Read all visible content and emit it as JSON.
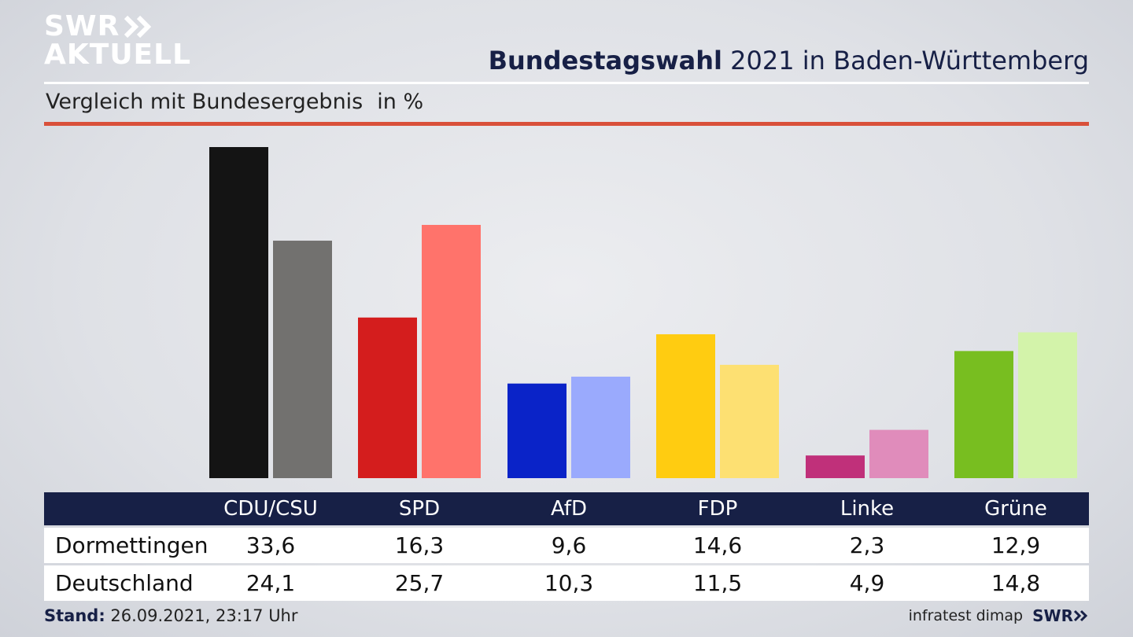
{
  "brand": {
    "logo_line1": "SWR",
    "logo_line2": "AKTUELL",
    "logo_color": "#ffffff",
    "navy": "#172046",
    "accent_red": "#d9503a"
  },
  "header": {
    "title_bold": "Bundestagswahl",
    "title_rest": "2021 in Baden-Württemberg",
    "subtitle": "Vergleich mit Bundesergebnis",
    "unit": "in %"
  },
  "chart_data": {
    "type": "bar",
    "categories": [
      "CDU/CSU",
      "SPD",
      "AfD",
      "FDP",
      "Linke",
      "Grüne"
    ],
    "series": [
      {
        "name": "Dormettingen",
        "values": [
          33.6,
          16.3,
          9.6,
          14.6,
          2.3,
          12.9
        ]
      },
      {
        "name": "Deutschland",
        "values": [
          24.1,
          25.7,
          10.3,
          11.5,
          4.9,
          14.8
        ]
      }
    ],
    "colors_primary": [
      "#141414",
      "#d41d1d",
      "#0a23c8",
      "#ffcc11",
      "#c0307a",
      "#78be20"
    ],
    "colors_secondary": [
      "#72716f",
      "#ff736b",
      "#9aaafd",
      "#fde072",
      "#e08cbb",
      "#d3f3aa"
    ],
    "ylim": [
      0,
      33.6
    ],
    "grid": false,
    "legend": "table-below"
  },
  "table": {
    "rows": [
      {
        "label": "Dormettingen",
        "values": [
          "33,6",
          "16,3",
          "9,6",
          "14,6",
          "2,3",
          "12,9"
        ]
      },
      {
        "label": "Deutschland",
        "values": [
          "24,1",
          "25,7",
          "10,3",
          "11,5",
          "4,9",
          "14,8"
        ]
      }
    ]
  },
  "footer": {
    "stand_label": "Stand:",
    "stand_value": "26.09.2021, 23:17 Uhr",
    "source": "infratest dimap",
    "brand": "SWR"
  }
}
